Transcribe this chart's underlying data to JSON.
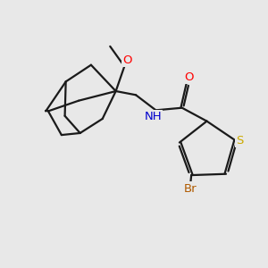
{
  "background_color": "#e8e8e8",
  "bond_color": "#1a1a1a",
  "bond_width": 1.6,
  "atom_colors": {
    "O": "#ff0000",
    "N": "#0000cd",
    "S": "#ccaa00",
    "Br": "#b05a00",
    "C": "#1a1a1a",
    "H": "#606060"
  },
  "font_size_atom": 9.5,
  "figsize": [
    3.0,
    3.0
  ],
  "dpi": 100
}
